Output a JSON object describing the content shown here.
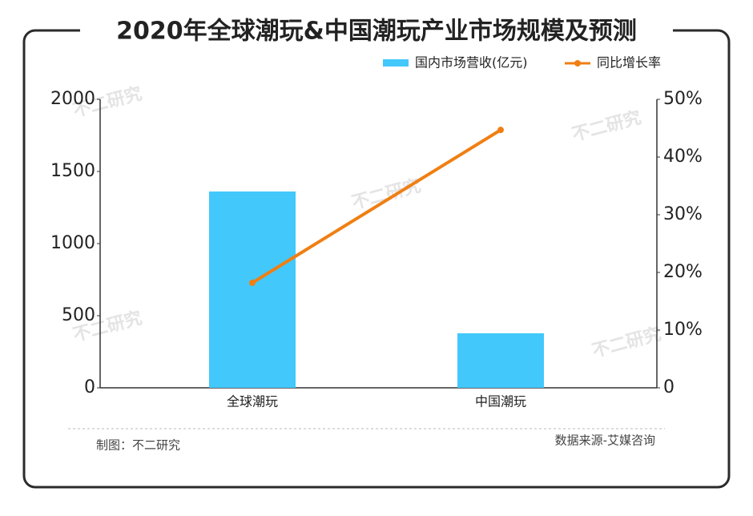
{
  "chart_data": {
    "type": "bar_line",
    "title": "2020年全球潮玩&中国潮玩产业市场规模及预测",
    "categories": [
      "全球潮玩",
      "中国潮玩"
    ],
    "series": [
      {
        "name": "国内市场营收(亿元)",
        "color": "#42c8fb",
        "type": "bar",
        "values": [
          1361,
          378
        ]
      },
      {
        "name": "同比增长率",
        "color": "#f07f13",
        "type": "line",
        "axis": "y2",
        "values": [
          18.2,
          44.7
        ]
      }
    ],
    "ylim": [
      0,
      2000
    ],
    "yticks": [
      0,
      500,
      1000,
      1500,
      2000
    ],
    "y2lim": [
      0,
      50
    ],
    "y2ticks": [
      0,
      {
        "value": 10,
        "label": "10%"
      },
      {
        "value": 20,
        "label": "20%"
      },
      {
        "value": 30,
        "label": "30%"
      },
      {
        "value": 40,
        "label": "40%"
      },
      {
        "value": 50,
        "label": "50%"
      }
    ],
    "grid": false,
    "legend": "top-right",
    "footer_left": "制图：不二研究",
    "footer_right": "数据来源-艾媒咨询",
    "watermark": "不二研究"
  }
}
